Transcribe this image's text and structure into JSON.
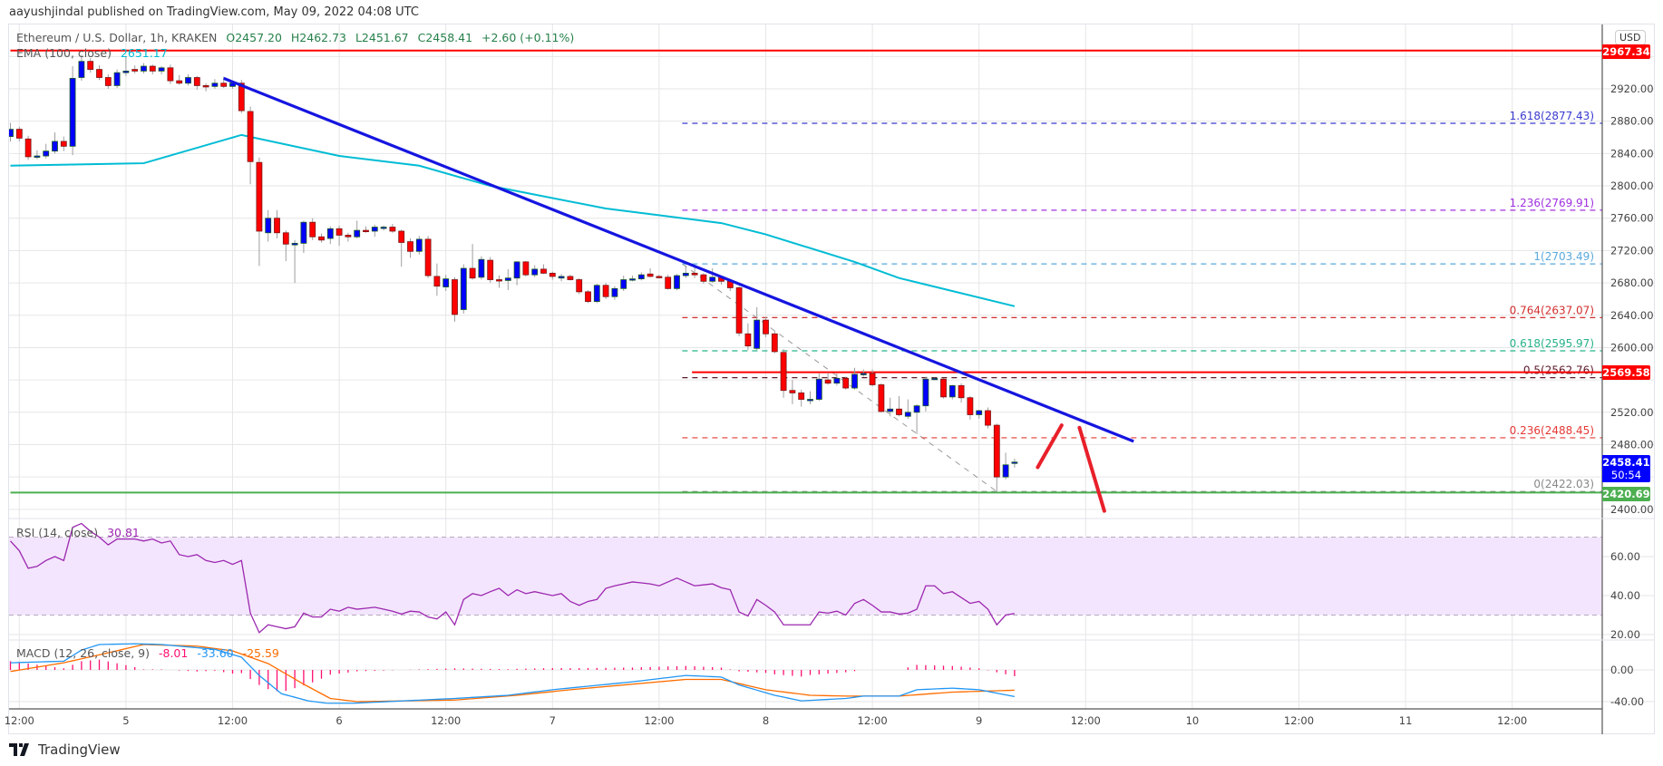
{
  "header": {
    "publisher": "aayushjindal published on TradingView.com, May 09, 2022 04:08 UTC",
    "symbol": "Ethereum / U.S. Dollar, 1h, KRAKEN",
    "open": "O2457.20",
    "high": "H2462.73",
    "low": "L2451.67",
    "close": "C2458.41",
    "change": "+2.60 (+0.11%)",
    "ema_label": "EMA (100, close)",
    "ema_value": "2651.17",
    "currency": "USD"
  },
  "price_tags": {
    "resistance_top": "2967.34",
    "resistance_mid": "2569.58",
    "last_price": "2458.41",
    "countdown": "50:54",
    "support": "2420.69"
  },
  "rsi": {
    "label": "RSI (14, close)",
    "value": "30.81"
  },
  "macd": {
    "label": "MACD (12, 26, close, 9)",
    "hist": "-8.01",
    "macd": "-33.60",
    "signal": "-25.59"
  },
  "footer": {
    "brand": "TradingView"
  },
  "colors": {
    "up": "#0000ff",
    "down": "#ff0000",
    "ema": "#00bcd4",
    "trend": "#1515e0",
    "rsi": "#9c27b0",
    "macd": "#2196f3",
    "signal": "#ff6d00",
    "hist": "#ff1070",
    "support": "#4caf50"
  },
  "chart_data": {
    "type": "candlestick",
    "title": "Ethereum / U.S. Dollar, 1h, KRAKEN",
    "first_candle": "May 4 11:00 UTC",
    "interval": "1h",
    "ylim": [
      2400,
      2967.34
    ],
    "price_ticks": [
      "2920.00",
      "2880.00",
      "2840.00",
      "2800.00",
      "2760.00",
      "2720.00",
      "2680.00",
      "2640.00",
      "2600.00",
      "2520.00",
      "2480.00",
      "2400.00"
    ],
    "price_grid": [
      2960,
      2920,
      2880,
      2840,
      2800,
      2760,
      2720,
      2680,
      2640,
      2600,
      2560,
      2520,
      2480,
      2440,
      2400
    ],
    "time_ticks": [
      "12:00",
      "5",
      "12:00",
      "6",
      "12:00",
      "7",
      "12:00",
      "8",
      "12:00",
      "9",
      "12:00",
      "10",
      "12:00",
      "11",
      "12:00"
    ],
    "candles": [
      [
        2861,
        2878,
        2855,
        2870
      ],
      [
        2870,
        2873,
        2855,
        2859
      ],
      [
        2858,
        2862,
        2832,
        2836
      ],
      [
        2837,
        2844,
        2833,
        2837
      ],
      [
        2837,
        2852,
        2834,
        2843
      ],
      [
        2843,
        2866,
        2840,
        2855
      ],
      [
        2855,
        2861,
        2843,
        2849
      ],
      [
        2849,
        2948,
        2838,
        2933
      ],
      [
        2934,
        2962,
        2930,
        2954
      ],
      [
        2954,
        2958,
        2940,
        2944
      ],
      [
        2944,
        2949,
        2931,
        2934
      ],
      [
        2934,
        2938,
        2920,
        2924
      ],
      [
        2924,
        2944,
        2921,
        2940
      ],
      [
        2940,
        2960,
        2936,
        2942
      ],
      [
        2944,
        2949,
        2939,
        2942
      ],
      [
        2942,
        2952,
        2939,
        2948
      ],
      [
        2948,
        2950,
        2938,
        2942
      ],
      [
        2942,
        2948,
        2938,
        2946
      ],
      [
        2946,
        2950,
        2926,
        2930
      ],
      [
        2930,
        2937,
        2925,
        2927
      ],
      [
        2927,
        2938,
        2924,
        2934
      ],
      [
        2934,
        2936,
        2919,
        2924
      ],
      [
        2924,
        2927,
        2917,
        2923
      ],
      [
        2923,
        2932,
        2920,
        2927
      ],
      [
        2927,
        2935,
        2921,
        2923
      ],
      [
        2923,
        2930,
        2920,
        2927
      ],
      [
        2927,
        2931,
        2890,
        2893
      ],
      [
        2892,
        2898,
        2802,
        2830
      ],
      [
        2829,
        2835,
        2701,
        2744
      ],
      [
        2742,
        2770,
        2731,
        2760
      ],
      [
        2760,
        2770,
        2735,
        2742
      ],
      [
        2742,
        2745,
        2707,
        2728
      ],
      [
        2727,
        2733,
        2680,
        2729
      ],
      [
        2729,
        2757,
        2717,
        2755
      ],
      [
        2755,
        2760,
        2733,
        2737
      ],
      [
        2737,
        2741,
        2730,
        2733
      ],
      [
        2735,
        2750,
        2728,
        2747
      ],
      [
        2747,
        2751,
        2726,
        2739
      ],
      [
        2739,
        2742,
        2731,
        2737
      ],
      [
        2737,
        2757,
        2735,
        2745
      ],
      [
        2745,
        2750,
        2742,
        2744
      ],
      [
        2744,
        2752,
        2737,
        2749
      ],
      [
        2749,
        2751,
        2745,
        2749
      ],
      [
        2749,
        2753,
        2742,
        2744
      ],
      [
        2744,
        2746,
        2700,
        2730
      ],
      [
        2731,
        2735,
        2711,
        2719
      ],
      [
        2719,
        2738,
        2715,
        2734
      ],
      [
        2734,
        2738,
        2686,
        2689
      ],
      [
        2688,
        2704,
        2664,
        2676
      ],
      [
        2675,
        2690,
        2670,
        2685
      ],
      [
        2684,
        2687,
        2632,
        2641
      ],
      [
        2647,
        2703,
        2642,
        2698
      ],
      [
        2698,
        2728,
        2684,
        2686
      ],
      [
        2687,
        2713,
        2684,
        2709
      ],
      [
        2708,
        2712,
        2680,
        2684
      ],
      [
        2684,
        2689,
        2674,
        2683
      ],
      [
        2683,
        2697,
        2671,
        2686
      ],
      [
        2686,
        2707,
        2677,
        2706
      ],
      [
        2706,
        2707,
        2688,
        2690
      ],
      [
        2690,
        2702,
        2687,
        2697
      ],
      [
        2697,
        2703,
        2691,
        2692
      ],
      [
        2692,
        2694,
        2684,
        2688
      ],
      [
        2686,
        2691,
        2682,
        2688
      ],
      [
        2688,
        2690,
        2683,
        2684
      ],
      [
        2684,
        2686,
        2666,
        2669
      ],
      [
        2669,
        2671,
        2655,
        2657
      ],
      [
        2657,
        2679,
        2655,
        2677
      ],
      [
        2677,
        2680,
        2660,
        2663
      ],
      [
        2663,
        2676,
        2659,
        2673
      ],
      [
        2673,
        2689,
        2670,
        2684
      ],
      [
        2684,
        2689,
        2682,
        2685
      ],
      [
        2685,
        2693,
        2683,
        2690
      ],
      [
        2691,
        2698,
        2687,
        2688
      ],
      [
        2688,
        2690,
        2686,
        2687
      ],
      [
        2687,
        2690,
        2672,
        2673
      ],
      [
        2673,
        2691,
        2671,
        2689
      ],
      [
        2689,
        2702,
        2686,
        2692
      ],
      [
        2692,
        2700,
        2686,
        2690
      ],
      [
        2690,
        2692,
        2679,
        2682
      ],
      [
        2682,
        2698,
        2680,
        2687
      ],
      [
        2687,
        2689,
        2678,
        2682
      ],
      [
        2682,
        2685,
        2670,
        2674
      ],
      [
        2674,
        2676,
        2614,
        2618
      ],
      [
        2617,
        2630,
        2597,
        2602
      ],
      [
        2599,
        2650,
        2597,
        2634
      ],
      [
        2634,
        2638,
        2613,
        2617
      ],
      [
        2617,
        2621,
        2593,
        2595
      ],
      [
        2594,
        2598,
        2538,
        2547
      ],
      [
        2547,
        2560,
        2530,
        2544
      ],
      [
        2544,
        2548,
        2527,
        2536
      ],
      [
        2536,
        2546,
        2530,
        2536
      ],
      [
        2536,
        2568,
        2534,
        2561
      ],
      [
        2560,
        2569,
        2554,
        2556
      ],
      [
        2556,
        2568,
        2553,
        2562
      ],
      [
        2562,
        2564,
        2548,
        2550
      ],
      [
        2550,
        2575,
        2548,
        2567
      ],
      [
        2567,
        2573,
        2564,
        2568
      ],
      [
        2568,
        2573,
        2552,
        2554
      ],
      [
        2554,
        2556,
        2520,
        2521
      ],
      [
        2521,
        2538,
        2515,
        2524
      ],
      [
        2524,
        2540,
        2515,
        2517
      ],
      [
        2515,
        2536,
        2512,
        2520
      ],
      [
        2520,
        2530,
        2493,
        2528
      ],
      [
        2528,
        2564,
        2521,
        2561
      ],
      [
        2562,
        2563,
        2560,
        2562
      ],
      [
        2561,
        2562,
        2537,
        2539
      ],
      [
        2539,
        2554,
        2536,
        2553
      ],
      [
        2553,
        2556,
        2532,
        2538
      ],
      [
        2538,
        2540,
        2511,
        2517
      ],
      [
        2517,
        2523,
        2512,
        2522
      ],
      [
        2522,
        2526,
        2500,
        2504
      ],
      [
        2504,
        2506,
        2421,
        2440
      ],
      [
        2440,
        2470,
        2437,
        2455
      ],
      [
        2457.2,
        2462.73,
        2451.67,
        2458.41
      ]
    ],
    "ema100": [
      [
        1,
        2825
      ],
      [
        16,
        2828
      ],
      [
        27,
        2863
      ],
      [
        38,
        2837
      ],
      [
        47,
        2825
      ],
      [
        55,
        2800
      ],
      [
        68,
        2772
      ],
      [
        81,
        2754
      ],
      [
        86,
        2740
      ],
      [
        96,
        2706
      ],
      [
        101,
        2686
      ],
      [
        114,
        2651.17
      ]
    ],
    "horizontal_levels": [
      {
        "price": 2967.34,
        "color": "#ff0000",
        "from": 1
      },
      {
        "price": 2569.58,
        "color": "#ff0000",
        "from": 77.7
      },
      {
        "price": 2420.69,
        "color": "#4caf50",
        "from": 1
      }
    ],
    "trendline": [
      [
        25,
        2933
      ],
      [
        127.4,
        2484
      ]
    ],
    "fibonacci": {
      "from": [
        76.6,
        2703.49
      ],
      "to": [
        112,
        2422.03
      ],
      "levels": [
        {
          "ratio": "0",
          "price": "2422.03",
          "label": "0(2422.03)",
          "color": "#888888"
        },
        {
          "ratio": "0.236",
          "price": "2488.45",
          "label": "0.236(2488.45)",
          "color": "#e53935"
        },
        {
          "ratio": "0.5",
          "price": "2562.76",
          "label": "0.5(2562.76)",
          "color": "#5d1a2a"
        },
        {
          "ratio": "0.618",
          "price": "2595.97",
          "label": "0.618(2595.97)",
          "color": "#26b38a"
        },
        {
          "ratio": "0.764",
          "price": "2637.07",
          "label": "0.764(2637.07)",
          "color": "#d32f2f"
        },
        {
          "ratio": "1",
          "price": "2703.49",
          "label": "1(2703.49)",
          "color": "#5aa9dc"
        },
        {
          "ratio": "1.236",
          "price": "2769.91",
          "label": "1.236(2769.91)",
          "color": "#a030e0"
        },
        {
          "ratio": "1.618",
          "price": "2877.43",
          "label": "1.618(2877.43)",
          "color": "#3a3ad0"
        }
      ]
    },
    "projection": [
      [
        [
          116.6,
          2452
        ],
        [
          119.3,
          2504
        ]
      ],
      [
        [
          121.3,
          2501
        ],
        [
          124.1,
          2398
        ]
      ]
    ],
    "rsi_ticks": [
      "60.00",
      "40.00",
      "20.00"
    ],
    "rsi_bands": [
      70,
      30
    ],
    "rsi_values": [
      68,
      63,
      54,
      55,
      58,
      60,
      58,
      75,
      77,
      73,
      70,
      66,
      69,
      69,
      69,
      68,
      69,
      67,
      68,
      61,
      60,
      61,
      58,
      57,
      58,
      56,
      58,
      31,
      21,
      25,
      24,
      23,
      24,
      31,
      29,
      29,
      33,
      32,
      34,
      33,
      33.5,
      34,
      33,
      32,
      30.5,
      32,
      31.6,
      29,
      28,
      31.6,
      25,
      38,
      41,
      40,
      42,
      43.7,
      40,
      43,
      41,
      42,
      41,
      40,
      41,
      37,
      35,
      37,
      38,
      43.7,
      45,
      46,
      47,
      46.5,
      46,
      45,
      47,
      49,
      47,
      45,
      45.5,
      46,
      44,
      43,
      31.6,
      29.5,
      38,
      35,
      31.6,
      25,
      25,
      25,
      25,
      31.6,
      31,
      32,
      30,
      36,
      38,
      35,
      31.6,
      31.6,
      30.5,
      31,
      33,
      45,
      45,
      41,
      42,
      39,
      36,
      37,
      33,
      25,
      30,
      30.81
    ],
    "macd_ticks": [
      "0.00",
      "-40.00"
    ],
    "macd_line": [
      [
        1,
        9
      ],
      [
        7,
        11
      ],
      [
        9,
        25
      ],
      [
        11,
        32
      ],
      [
        15,
        33
      ],
      [
        18,
        32
      ],
      [
        24,
        26
      ],
      [
        27,
        16
      ],
      [
        29,
        -7
      ],
      [
        31.5,
        -30
      ],
      [
        34.5,
        -39
      ],
      [
        36.6,
        -42
      ],
      [
        39.6,
        -42
      ],
      [
        51,
        -36
      ],
      [
        57,
        -32
      ],
      [
        62,
        -25
      ],
      [
        71,
        -15
      ],
      [
        77,
        -7
      ],
      [
        81,
        -9
      ],
      [
        83,
        -19
      ],
      [
        87,
        -32
      ],
      [
        90,
        -39
      ],
      [
        95,
        -36
      ],
      [
        97,
        -33
      ],
      [
        101,
        -33
      ],
      [
        103,
        -25
      ],
      [
        107,
        -23
      ],
      [
        110,
        -25
      ],
      [
        114,
        -33.6
      ]
    ],
    "signal_line": [
      [
        1,
        -2
      ],
      [
        7,
        9
      ],
      [
        11,
        19
      ],
      [
        16,
        32
      ],
      [
        22,
        30
      ],
      [
        26,
        24
      ],
      [
        30,
        8
      ],
      [
        34,
        -18
      ],
      [
        37,
        -36
      ],
      [
        40,
        -40
      ],
      [
        51,
        -38
      ],
      [
        58,
        -32
      ],
      [
        64,
        -25
      ],
      [
        77,
        -12
      ],
      [
        81,
        -12
      ],
      [
        86,
        -25
      ],
      [
        91,
        -32
      ],
      [
        95,
        -33
      ],
      [
        101,
        -33
      ],
      [
        107,
        -28
      ],
      [
        114,
        -25.59
      ]
    ]
  }
}
